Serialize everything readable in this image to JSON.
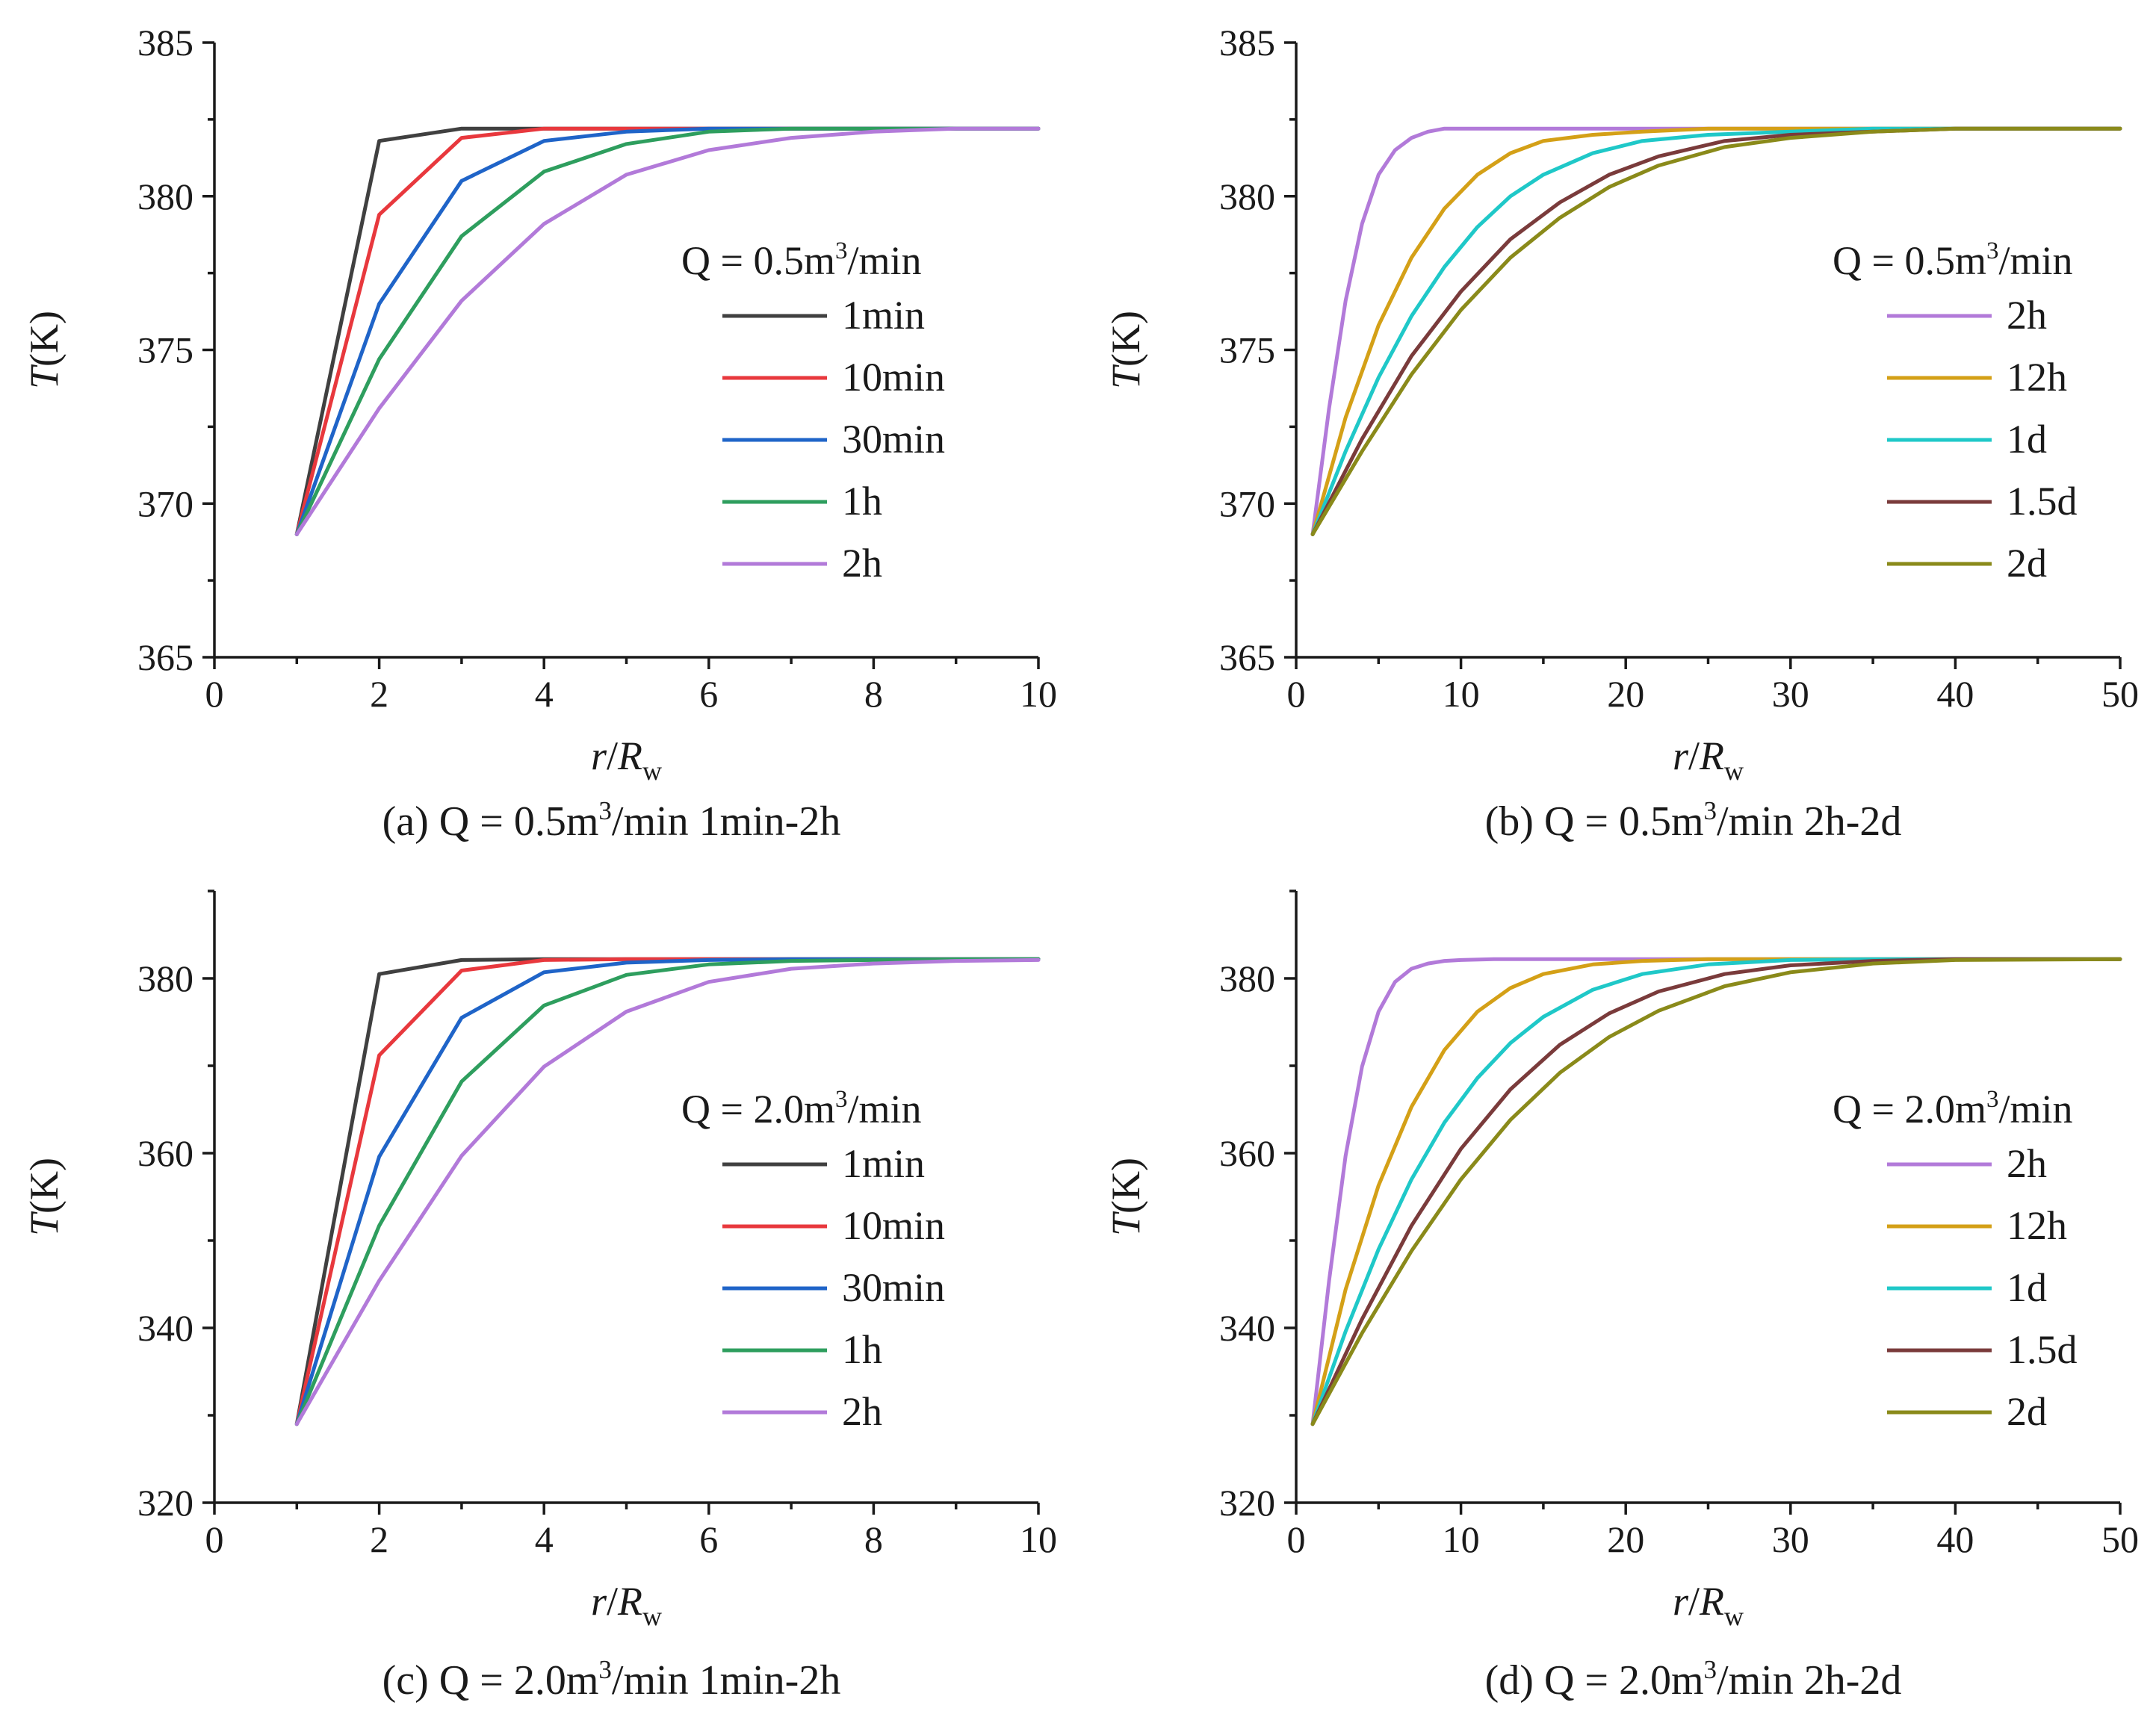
{
  "chart_data": [
    {
      "type": "line",
      "panel": "a",
      "caption": "(a) Q = 0.5m³/min 1min-2h",
      "xlabel": "r/Rw",
      "ylabel": "T(K)",
      "xlim": [
        0,
        10
      ],
      "ylim": [
        365,
        385
      ],
      "xticks": [
        0,
        2,
        4,
        6,
        8,
        10
      ],
      "yticks": [
        365,
        370,
        375,
        380,
        385
      ],
      "legend_title": "Q = 0.5m³/min",
      "legend_position": "center-right",
      "series": [
        {
          "name": "1min",
          "color": "#404040",
          "x": [
            1,
            2,
            3,
            4,
            5,
            6,
            7,
            8,
            9,
            10
          ],
          "y": [
            369.0,
            381.8,
            382.2,
            382.2,
            382.2,
            382.2,
            382.2,
            382.2,
            382.2,
            382.2
          ]
        },
        {
          "name": "10min",
          "color": "#e8383d",
          "x": [
            1,
            2,
            3,
            4,
            5,
            6,
            7,
            8,
            9,
            10
          ],
          "y": [
            369.0,
            379.4,
            381.9,
            382.2,
            382.2,
            382.2,
            382.2,
            382.2,
            382.2,
            382.2
          ]
        },
        {
          "name": "30min",
          "color": "#1f64c8",
          "x": [
            1,
            2,
            3,
            4,
            5,
            6,
            7,
            8,
            9,
            10
          ],
          "y": [
            369.0,
            376.5,
            380.5,
            381.8,
            382.1,
            382.2,
            382.2,
            382.2,
            382.2,
            382.2
          ]
        },
        {
          "name": "1h",
          "color": "#2e9e5e",
          "x": [
            1,
            2,
            3,
            4,
            5,
            6,
            7,
            8,
            9,
            10
          ],
          "y": [
            369.0,
            374.7,
            378.7,
            380.8,
            381.7,
            382.1,
            382.2,
            382.2,
            382.2,
            382.2
          ]
        },
        {
          "name": "2h",
          "color": "#b27ad9",
          "x": [
            1,
            2,
            3,
            4,
            5,
            6,
            7,
            8,
            9,
            10
          ],
          "y": [
            369.0,
            373.1,
            376.6,
            379.1,
            380.7,
            381.5,
            381.9,
            382.1,
            382.2,
            382.2
          ]
        }
      ]
    },
    {
      "type": "line",
      "panel": "b",
      "caption": "(b) Q = 0.5m³/min 2h-2d",
      "xlabel": "r/Rw",
      "ylabel": "T(K)",
      "xlim": [
        0,
        50
      ],
      "ylim": [
        365,
        385
      ],
      "xticks": [
        0,
        10,
        20,
        30,
        40,
        50
      ],
      "yticks": [
        365,
        370,
        375,
        380,
        385
      ],
      "legend_title": "Q = 0.5m³/min",
      "legend_position": "center-right",
      "series": [
        {
          "name": "2h",
          "color": "#b27ad9",
          "x": [
            1,
            2,
            3,
            4,
            5,
            6,
            7,
            8,
            9,
            10,
            12,
            15,
            20,
            30,
            40,
            50
          ],
          "y": [
            369.0,
            373.1,
            376.6,
            379.1,
            380.7,
            381.5,
            381.9,
            382.1,
            382.2,
            382.2,
            382.2,
            382.2,
            382.2,
            382.2,
            382.2,
            382.2
          ]
        },
        {
          "name": "12h",
          "color": "#d4a017",
          "x": [
            1,
            3,
            5,
            7,
            9,
            11,
            13,
            15,
            18,
            21,
            25,
            30,
            40,
            50
          ],
          "y": [
            369.0,
            372.8,
            375.8,
            378.0,
            379.6,
            380.7,
            381.4,
            381.8,
            382.0,
            382.1,
            382.2,
            382.2,
            382.2,
            382.2
          ]
        },
        {
          "name": "1d",
          "color": "#1fc8c8",
          "x": [
            1,
            3,
            5,
            7,
            9,
            11,
            13,
            15,
            18,
            21,
            25,
            30,
            35,
            40,
            50
          ],
          "y": [
            369.0,
            371.7,
            374.1,
            376.1,
            377.7,
            379.0,
            380.0,
            380.7,
            381.4,
            381.8,
            382.0,
            382.1,
            382.2,
            382.2,
            382.2
          ]
        },
        {
          "name": "1.5d",
          "color": "#7a3b3b",
          "x": [
            1,
            4,
            7,
            10,
            13,
            16,
            19,
            22,
            26,
            30,
            35,
            40,
            50
          ],
          "y": [
            369.0,
            372.1,
            374.8,
            376.9,
            378.6,
            379.8,
            380.7,
            381.3,
            381.8,
            382.0,
            382.1,
            382.2,
            382.2
          ]
        },
        {
          "name": "2d",
          "color": "#8a8a1a",
          "x": [
            1,
            4,
            7,
            10,
            13,
            16,
            19,
            22,
            26,
            30,
            35,
            40,
            50
          ],
          "y": [
            369.0,
            371.7,
            374.2,
            376.3,
            378.0,
            379.3,
            380.3,
            381.0,
            381.6,
            381.9,
            382.1,
            382.2,
            382.2
          ]
        }
      ]
    },
    {
      "type": "line",
      "panel": "c",
      "caption": "(c) Q = 2.0m³/min 1min-2h",
      "xlabel": "r/Rw",
      "ylabel": "T(K)",
      "xlim": [
        0,
        10
      ],
      "ylim": [
        320,
        390
      ],
      "xticks": [
        0,
        2,
        4,
        6,
        8,
        10
      ],
      "yticks": [
        320,
        340,
        360,
        380
      ],
      "legend_title": "Q = 2.0m³/min",
      "legend_position": "center-right",
      "series": [
        {
          "name": "1min",
          "color": "#404040",
          "x": [
            1,
            2,
            3,
            4,
            5,
            6,
            7,
            8,
            9,
            10
          ],
          "y": [
            329.0,
            380.5,
            382.1,
            382.2,
            382.2,
            382.2,
            382.2,
            382.2,
            382.2,
            382.2
          ]
        },
        {
          "name": "10min",
          "color": "#e8383d",
          "x": [
            1,
            2,
            3,
            4,
            5,
            6,
            7,
            8,
            9,
            10
          ],
          "y": [
            329.0,
            371.2,
            380.9,
            382.1,
            382.2,
            382.2,
            382.2,
            382.2,
            382.2,
            382.2
          ]
        },
        {
          "name": "30min",
          "color": "#1f64c8",
          "x": [
            1,
            2,
            3,
            4,
            5,
            6,
            7,
            8,
            9,
            10
          ],
          "y": [
            329.0,
            359.6,
            375.5,
            380.7,
            381.8,
            382.1,
            382.2,
            382.2,
            382.2,
            382.2
          ]
        },
        {
          "name": "1h",
          "color": "#2e9e5e",
          "x": [
            1,
            2,
            3,
            4,
            5,
            6,
            7,
            8,
            9,
            10
          ],
          "y": [
            329.0,
            351.7,
            368.2,
            376.9,
            380.4,
            381.6,
            382.0,
            382.1,
            382.2,
            382.2
          ]
        },
        {
          "name": "2h",
          "color": "#b27ad9",
          "x": [
            1,
            2,
            3,
            4,
            5,
            6,
            7,
            8,
            9,
            10
          ],
          "y": [
            329.0,
            345.4,
            359.7,
            369.9,
            376.2,
            379.6,
            381.1,
            381.7,
            382.0,
            382.1
          ]
        }
      ]
    },
    {
      "type": "line",
      "panel": "d",
      "caption": "(d) Q = 2.0m³/min 2h-2d",
      "xlabel": "r/Rw",
      "ylabel": "T(K)",
      "xlim": [
        0,
        50
      ],
      "ylim": [
        320,
        390
      ],
      "xticks": [
        0,
        10,
        20,
        30,
        40,
        50
      ],
      "yticks": [
        320,
        340,
        360,
        380
      ],
      "legend_title": "Q = 2.0m³/min",
      "legend_position": "center-right",
      "series": [
        {
          "name": "2h",
          "color": "#b27ad9",
          "x": [
            1,
            2,
            3,
            4,
            5,
            6,
            7,
            8,
            9,
            10,
            12,
            15,
            20,
            30,
            40,
            50
          ],
          "y": [
            329.0,
            345.4,
            359.7,
            369.9,
            376.2,
            379.6,
            381.1,
            381.7,
            382.0,
            382.1,
            382.2,
            382.2,
            382.2,
            382.2,
            382.2,
            382.2
          ]
        },
        {
          "name": "12h",
          "color": "#d4a017",
          "x": [
            1,
            3,
            5,
            7,
            9,
            11,
            13,
            15,
            18,
            21,
            25,
            30,
            40,
            50
          ],
          "y": [
            329.0,
            344.4,
            356.3,
            365.3,
            371.8,
            376.2,
            378.9,
            380.5,
            381.6,
            382.0,
            382.2,
            382.2,
            382.2,
            382.2
          ]
        },
        {
          "name": "1d",
          "color": "#1fc8c8",
          "x": [
            1,
            3,
            5,
            7,
            9,
            11,
            13,
            15,
            18,
            21,
            25,
            30,
            35,
            40,
            50
          ],
          "y": [
            329.0,
            339.6,
            349.0,
            357.0,
            363.5,
            368.6,
            372.6,
            375.6,
            378.7,
            380.5,
            381.6,
            382.1,
            382.2,
            382.2,
            382.2
          ]
        },
        {
          "name": "1.5d",
          "color": "#7a3b3b",
          "x": [
            1,
            4,
            7,
            10,
            13,
            16,
            19,
            22,
            26,
            30,
            35,
            40,
            50
          ],
          "y": [
            329.0,
            341.0,
            351.7,
            360.5,
            367.3,
            372.4,
            376.0,
            378.5,
            380.5,
            381.5,
            382.0,
            382.2,
            382.2
          ]
        },
        {
          "name": "2d",
          "color": "#8a8a1a",
          "x": [
            1,
            4,
            7,
            10,
            13,
            16,
            19,
            22,
            26,
            30,
            35,
            40,
            50
          ],
          "y": [
            329.0,
            339.4,
            348.8,
            357.0,
            363.8,
            369.2,
            373.3,
            376.3,
            379.1,
            380.7,
            381.7,
            382.1,
            382.2
          ]
        }
      ]
    }
  ]
}
